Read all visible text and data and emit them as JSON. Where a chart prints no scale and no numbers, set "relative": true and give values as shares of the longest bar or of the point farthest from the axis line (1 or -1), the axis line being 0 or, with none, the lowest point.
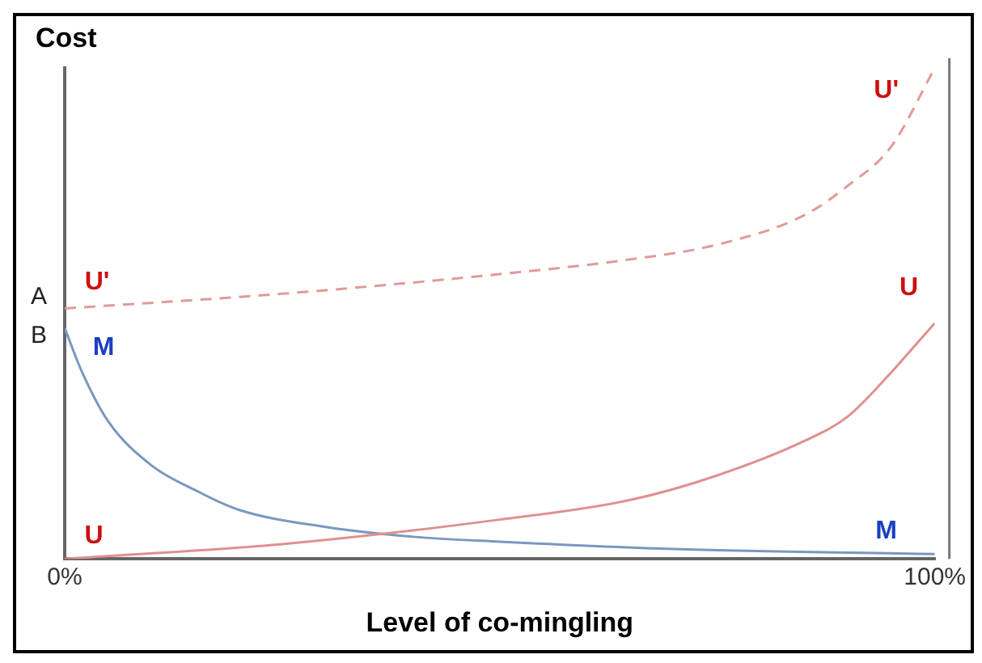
{
  "chart_data": {
    "type": "line",
    "relative": true,
    "ylabel": "Cost",
    "xlabel": "Level of co-mingling",
    "xlim": [
      0,
      100
    ],
    "xticks": [
      {
        "value": 0,
        "label": "0%"
      },
      {
        "value": 100,
        "label": "100%"
      }
    ],
    "annotations": [
      {
        "text": "A",
        "x": 0,
        "y": 0.51
      },
      {
        "text": "B",
        "x": 0,
        "y": 0.47
      }
    ],
    "series": [
      {
        "name": "U'",
        "color": "#e09a9a",
        "line_style": "dashed",
        "x": [
          0,
          25,
          50,
          65,
          75,
          85,
          90,
          95,
          100
        ],
        "values": [
          0.51,
          0.54,
          0.58,
          0.61,
          0.64,
          0.7,
          0.76,
          0.84,
          1
        ]
      },
      {
        "name": "U",
        "color": "#e09090",
        "x": [
          0,
          25,
          50,
          65,
          75,
          85,
          90,
          95,
          98,
          100
        ],
        "values": [
          0,
          0.03,
          0.08,
          0.12,
          0.17,
          0.24,
          0.29,
          0.38,
          0.44,
          0.48
        ]
      },
      {
        "name": "M",
        "color": "#7a98c0",
        "x": [
          0,
          2,
          5,
          10,
          15,
          20,
          30,
          40,
          50,
          70,
          100
        ],
        "values": [
          0.47,
          0.38,
          0.28,
          0.19,
          0.14,
          0.1,
          0.065,
          0.045,
          0.035,
          0.02,
          0.01
        ]
      }
    ],
    "grid": false,
    "legend": false,
    "marker": "none"
  }
}
